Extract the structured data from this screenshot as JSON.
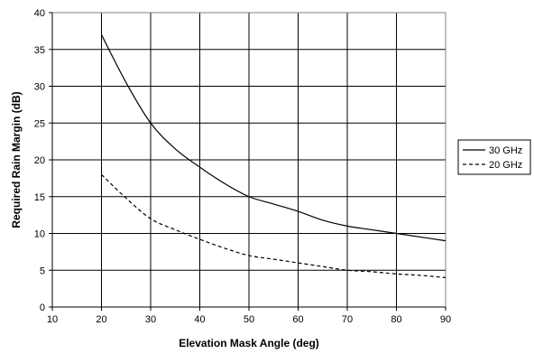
{
  "chart_data": {
    "type": "line",
    "title": "",
    "xlabel": "Elevation Mask Angle (deg)",
    "ylabel": "Required Rain Margin (dB)",
    "xlim": [
      10,
      90
    ],
    "ylim": [
      0,
      40
    ],
    "xticks": [
      10,
      20,
      30,
      40,
      50,
      60,
      70,
      80,
      90
    ],
    "yticks": [
      0,
      5,
      10,
      15,
      20,
      25,
      30,
      35,
      40
    ],
    "grid": "horizontal and vertical major gridlines",
    "legend_position": "right",
    "series": [
      {
        "name": "30 GHz",
        "style": "solid",
        "color": "#000000",
        "x": [
          20,
          25,
          30,
          35,
          40,
          45,
          50,
          55,
          60,
          65,
          70,
          75,
          80,
          85,
          90
        ],
        "y": [
          37,
          30.5,
          25,
          21.5,
          19,
          16.8,
          15,
          14,
          13,
          11.8,
          11,
          10.5,
          10,
          9.5,
          9
        ]
      },
      {
        "name": "20 GHz",
        "style": "dashed",
        "color": "#000000",
        "x": [
          20,
          25,
          30,
          35,
          40,
          45,
          50,
          55,
          60,
          65,
          70,
          75,
          80,
          85,
          90
        ],
        "y": [
          18,
          14.8,
          12,
          10.5,
          9.2,
          8,
          7,
          6.5,
          6,
          5.5,
          5,
          4.8,
          4.5,
          4.3,
          4
        ]
      }
    ]
  }
}
